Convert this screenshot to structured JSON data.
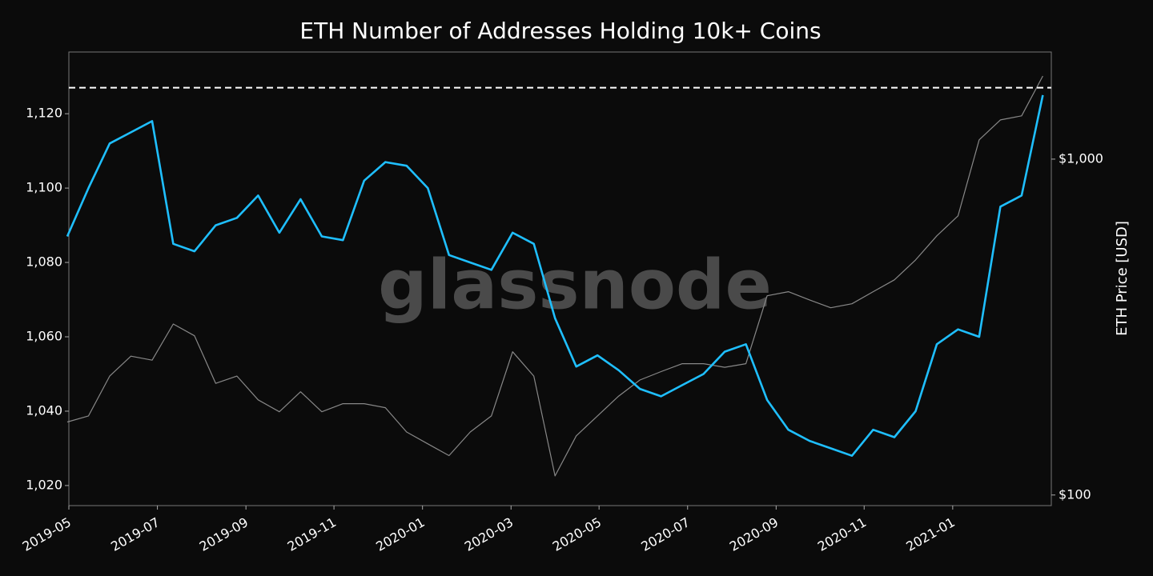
{
  "chart_data": {
    "type": "line",
    "title": "ETH Number of Addresses Holding 10k+ Coins",
    "watermark": "glassnode",
    "y2label": "ETH Price [USD]",
    "y2log": true,
    "hline": 1127,
    "xlim": [
      2019.333,
      2021.186
    ],
    "xticks": [
      {
        "value": 2019.333,
        "label": "2019-05"
      },
      {
        "value": 2019.5,
        "label": "2019-07"
      },
      {
        "value": 2019.667,
        "label": "2019-09"
      },
      {
        "value": 2019.833,
        "label": "2019-11"
      },
      {
        "value": 2020.0,
        "label": "2020-01"
      },
      {
        "value": 2020.167,
        "label": "2020-03"
      },
      {
        "value": 2020.333,
        "label": "2020-05"
      },
      {
        "value": 2020.5,
        "label": "2020-07"
      },
      {
        "value": 2020.667,
        "label": "2020-09"
      },
      {
        "value": 2020.833,
        "label": "2020-11"
      },
      {
        "value": 2021.0,
        "label": "2021-01"
      }
    ],
    "ylim": [
      1014.6,
      1136.6
    ],
    "yticks": [
      {
        "value": 1020,
        "label": "1,020"
      },
      {
        "value": 1040,
        "label": "1,040"
      },
      {
        "value": 1060,
        "label": "1,060"
      },
      {
        "value": 1080,
        "label": "1,080"
      },
      {
        "value": 1100,
        "label": "1,100"
      },
      {
        "value": 1120,
        "label": "1,120"
      }
    ],
    "y2lim": [
      93,
      2084
    ],
    "y2ticks": [
      {
        "value": 100,
        "label": "$100"
      },
      {
        "value": 1000,
        "label": "$1,000"
      }
    ],
    "x": [
      2019.33,
      2019.37,
      2019.41,
      2019.45,
      2019.49,
      2019.53,
      2019.57,
      2019.61,
      2019.65,
      2019.69,
      2019.73,
      2019.77,
      2019.81,
      2019.85,
      2019.89,
      2019.93,
      2019.97,
      2020.01,
      2020.05,
      2020.09,
      2020.13,
      2020.17,
      2020.21,
      2020.25,
      2020.29,
      2020.33,
      2020.37,
      2020.41,
      2020.45,
      2020.49,
      2020.53,
      2020.57,
      2020.61,
      2020.65,
      2020.69,
      2020.73,
      2020.77,
      2020.81,
      2020.85,
      2020.89,
      2020.93,
      2020.97,
      2021.01,
      2021.05,
      2021.09,
      2021.13,
      2021.17
    ],
    "series": [
      {
        "color": "#888888",
        "axis": "y2",
        "values": [
          165,
          172,
          226,
          259,
          252,
          323,
          298,
          215,
          226,
          192,
          177,
          203,
          177,
          187,
          187,
          182,
          154,
          142,
          131,
          154,
          172,
          267,
          226,
          114,
          150,
          172,
          197,
          220,
          233,
          246,
          246,
          240,
          246,
          392,
          403,
          381,
          361,
          371,
          403,
          437,
          501,
          591,
          678,
          1141,
          1308,
          1345,
          1768
        ]
      },
      {
        "color": "#1fbfff",
        "values": [
          1087,
          1100,
          1112,
          1115,
          1118,
          1085,
          1083,
          1090,
          1092,
          1098,
          1088,
          1097,
          1087,
          1086,
          1102,
          1107,
          1106,
          1100,
          1082,
          1080,
          1078,
          1088,
          1085,
          1065,
          1052,
          1055,
          1051,
          1046,
          1044,
          1047,
          1050,
          1056,
          1058,
          1043,
          1035,
          1032,
          1030,
          1028,
          1035,
          1033,
          1040,
          1058,
          1062,
          1060,
          1095,
          1098,
          1125
        ]
      }
    ]
  }
}
